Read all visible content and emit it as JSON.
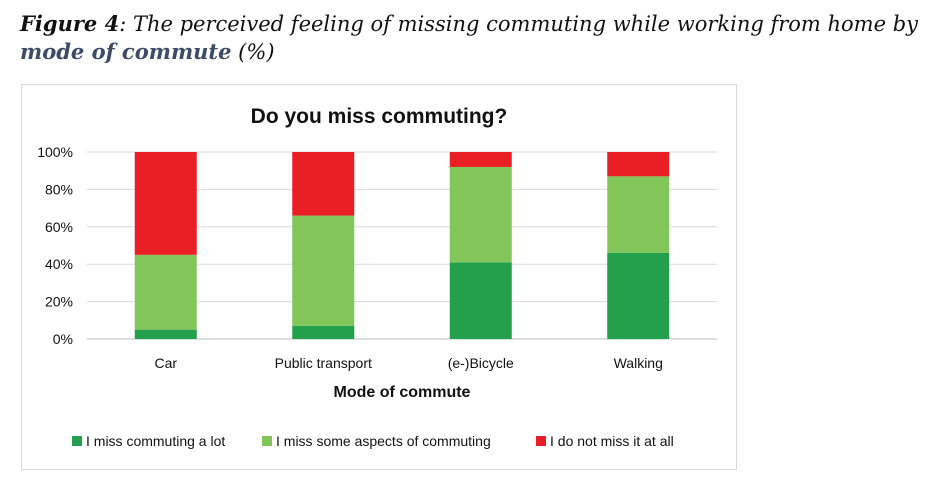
{
  "caption": {
    "prefix": "Figure 4",
    "middle": ": The perceived feeling of missing commuting while working from home by ",
    "emphasis": "mode of commute",
    "suffix": " (%)"
  },
  "chart_data": {
    "type": "bar",
    "stacked": true,
    "title": "Do you miss commuting?",
    "xlabel": "Mode of commute",
    "ylabel": "",
    "ylim": [
      0,
      100
    ],
    "yticks": [
      "0%",
      "20%",
      "40%",
      "60%",
      "80%",
      "100%"
    ],
    "ytick_values": [
      0,
      20,
      40,
      60,
      80,
      100
    ],
    "grid": true,
    "legend_position": "bottom",
    "categories": [
      "Car",
      "Public transport",
      "(e-)Bicycle",
      "Walking"
    ],
    "series": [
      {
        "name": "I miss commuting a lot",
        "color": "#22a04b",
        "values": [
          5,
          7,
          41,
          46
        ]
      },
      {
        "name": "I miss some aspects of commuting",
        "color": "#82c65a",
        "values": [
          40,
          59,
          51,
          41
        ]
      },
      {
        "name": "I do not miss it at all",
        "color": "#ea1e25",
        "values": [
          55,
          34,
          8,
          13
        ]
      }
    ]
  }
}
